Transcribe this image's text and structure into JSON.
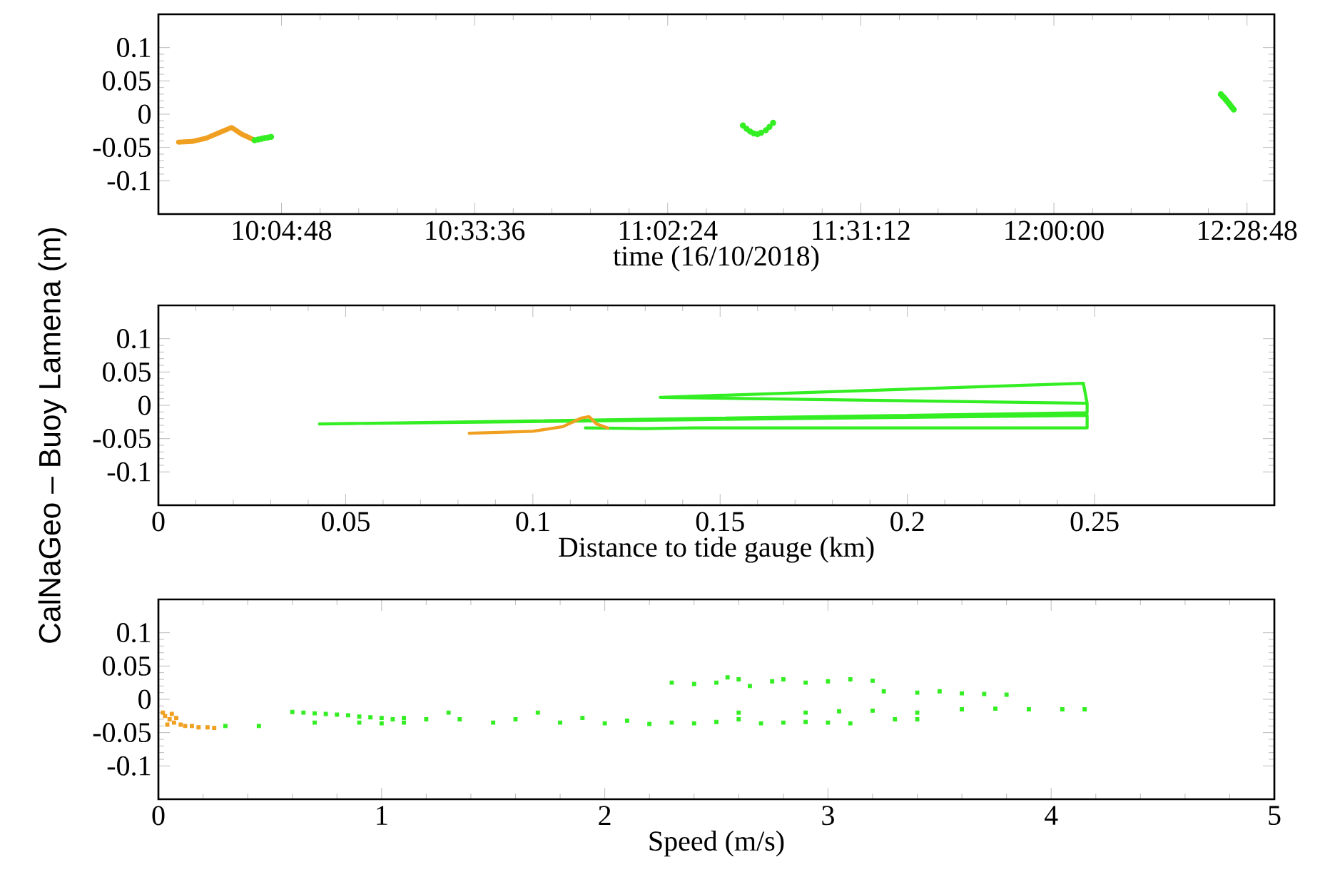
{
  "chart_data": [
    {
      "type": "line",
      "marker": "circle",
      "xlabel": "time (16/10/2018)",
      "xlim": [
        9.774,
        12.548
      ],
      "ylim": [
        -0.15,
        0.15
      ],
      "xticks": [
        {
          "value": 10.08,
          "label": "10:04:48"
        },
        {
          "value": 10.56,
          "label": "10:33:36"
        },
        {
          "value": 11.04,
          "label": "11:02:24"
        },
        {
          "value": 11.52,
          "label": "11:31:12"
        },
        {
          "value": 12.0,
          "label": "12:00:00"
        },
        {
          "value": 12.48,
          "label": "12:28:48"
        }
      ],
      "yticks": [
        -0.1,
        -0.05,
        0,
        0.05,
        0.1
      ],
      "series": [
        {
          "marker": "none",
          "color": "#f0a020",
          "x": [
            9.824,
            9.857,
            9.893,
            9.928,
            9.956,
            9.981,
            10.013
          ],
          "values": [
            -0.042,
            -0.041,
            -0.036,
            -0.027,
            -0.02,
            -0.03,
            -0.039
          ]
        },
        {
          "type": "scatter",
          "color": "#33ee22",
          "x": [
            10.013,
            10.022,
            10.03,
            10.038,
            10.046,
            10.054
          ],
          "values": [
            -0.039,
            -0.038,
            -0.037,
            -0.036,
            -0.035,
            -0.034
          ]
        },
        {
          "type": "scatter",
          "color": "#33ee22",
          "x": [
            11.227,
            11.236,
            11.245,
            11.254,
            11.263,
            11.272,
            11.284,
            11.293,
            11.302
          ],
          "values": [
            -0.017,
            -0.022,
            -0.026,
            -0.029,
            -0.03,
            -0.028,
            -0.024,
            -0.019,
            -0.013
          ]
        },
        {
          "type": "scatter",
          "color": "#33ee22",
          "x": [
            12.415,
            12.419,
            12.423,
            12.427,
            12.431,
            12.435,
            12.439,
            12.443,
            12.447
          ],
          "values": [
            0.03,
            0.027,
            0.025,
            0.022,
            0.019,
            0.016,
            0.013,
            0.01,
            0.007
          ]
        }
      ]
    },
    {
      "type": "line",
      "xlabel": "Distance to tide gauge (km)",
      "ylabel": "CalNaGeo – Buoy Lamena (m)",
      "xlim": [
        0,
        0.298
      ],
      "ylim": [
        -0.15,
        0.15
      ],
      "xticks": [
        0,
        0.05,
        0.1,
        0.15,
        0.2,
        0.25
      ],
      "yticks": [
        -0.1,
        -0.05,
        0,
        0.05,
        0.1
      ],
      "series": [
        {
          "color": "#33ee22",
          "x": [
            0.114,
            0.13,
            0.143,
            0.248,
            0.248,
            0.043,
            0.19,
            0.248,
            0.248,
            0.134,
            0.247,
            0.248
          ],
          "values": [
            -0.034,
            -0.035,
            -0.034,
            -0.034,
            -0.015,
            -0.028,
            -0.016,
            -0.011,
            0.003,
            0.012,
            0.033,
            0.003
          ]
        },
        {
          "color": "#f0a020",
          "x": [
            0.083,
            0.1,
            0.108,
            0.113,
            0.115,
            0.117,
            0.12
          ],
          "values": [
            -0.042,
            -0.039,
            -0.032,
            -0.019,
            -0.017,
            -0.028,
            -0.034
          ]
        }
      ]
    },
    {
      "type": "scatter",
      "xlabel": "Speed (m/s)",
      "xlim": [
        0,
        5
      ],
      "ylim": [
        -0.15,
        0.15
      ],
      "marker": "square",
      "xticks": [
        0,
        1,
        2,
        3,
        4,
        5
      ],
      "yticks": [
        -0.1,
        -0.05,
        0,
        0.05,
        0.1
      ],
      "series": [
        {
          "color": "#33ee22",
          "x": [
            0.3,
            0.45,
            0.6,
            0.65,
            0.7,
            0.75,
            0.8,
            0.85,
            0.9,
            0.95,
            1.0,
            1.05,
            1.1,
            0.9,
            1.0,
            1.1,
            0.7,
            1.2,
            1.3,
            1.35,
            1.5,
            1.6,
            1.7,
            1.8,
            1.9,
            2.0,
            2.1,
            2.2,
            2.3,
            2.4,
            2.5,
            2.6,
            2.7,
            2.8,
            2.9,
            3.0,
            3.1,
            3.3,
            3.4,
            2.6,
            2.9,
            3.05,
            3.2,
            3.4,
            3.6,
            3.75,
            3.9,
            4.05,
            4.15,
            2.3,
            2.4,
            2.5,
            2.55,
            2.6,
            2.65,
            2.75,
            2.8,
            2.9,
            3.0,
            3.1,
            3.2,
            3.25,
            3.4,
            3.5,
            3.6,
            3.7,
            3.8
          ],
          "values": [
            -0.04,
            -0.04,
            -0.019,
            -0.02,
            -0.021,
            -0.022,
            -0.023,
            -0.024,
            -0.026,
            -0.027,
            -0.028,
            -0.03,
            -0.028,
            -0.035,
            -0.036,
            -0.035,
            -0.035,
            -0.03,
            -0.02,
            -0.03,
            -0.035,
            -0.03,
            -0.02,
            -0.035,
            -0.028,
            -0.036,
            -0.032,
            -0.037,
            -0.035,
            -0.036,
            -0.034,
            -0.03,
            -0.036,
            -0.035,
            -0.034,
            -0.035,
            -0.036,
            -0.03,
            -0.03,
            -0.02,
            -0.02,
            -0.018,
            -0.017,
            -0.02,
            -0.015,
            -0.014,
            -0.015,
            -0.015,
            -0.015,
            0.025,
            0.023,
            0.025,
            0.033,
            0.03,
            0.02,
            0.027,
            0.03,
            0.025,
            0.027,
            0.03,
            0.028,
            0.012,
            0.01,
            0.012,
            0.009,
            0.008,
            0.007
          ]
        },
        {
          "color": "#f0a020",
          "x": [
            0.02,
            0.03,
            0.04,
            0.05,
            0.06,
            0.07,
            0.08,
            0.1,
            0.12,
            0.15,
            0.18,
            0.22,
            0.25
          ],
          "values": [
            -0.02,
            -0.025,
            -0.038,
            -0.03,
            -0.022,
            -0.035,
            -0.028,
            -0.038,
            -0.04,
            -0.04,
            -0.042,
            -0.042,
            -0.043
          ]
        }
      ]
    }
  ]
}
